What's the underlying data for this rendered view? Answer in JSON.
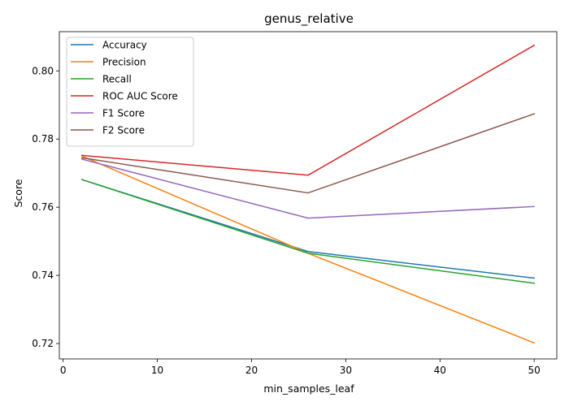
{
  "chart_data": {
    "type": "line",
    "title": "genus_relative",
    "xlabel": "min_samples_leaf",
    "ylabel": "Score",
    "x": [
      2,
      26,
      50
    ],
    "xlim": [
      -0.4,
      52.4
    ],
    "ylim": [
      0.7155,
      0.8115
    ],
    "xticks": [
      0,
      10,
      20,
      30,
      40,
      50
    ],
    "yticks": [
      0.72,
      0.74,
      0.76,
      0.78,
      0.8
    ],
    "ytick_labels": [
      "0.72",
      "0.74",
      "0.76",
      "0.78",
      "0.80"
    ],
    "grid": false,
    "legend_position": "upper-left",
    "series": [
      {
        "name": "Accuracy",
        "color": "#1f77b4",
        "values": [
          0.7681,
          0.747,
          0.7392
        ]
      },
      {
        "name": "Precision",
        "color": "#ff7f0e",
        "values": [
          0.775,
          0.7465,
          0.7202
        ]
      },
      {
        "name": "Recall",
        "color": "#2ca02c",
        "values": [
          0.7681,
          0.7465,
          0.7377
        ]
      },
      {
        "name": "ROC AUC Score",
        "color": "#d62728",
        "values": [
          0.7752,
          0.7694,
          0.8075
        ]
      },
      {
        "name": "F1 Score",
        "color": "#9467bd",
        "values": [
          0.7741,
          0.7568,
          0.7602
        ]
      },
      {
        "name": "F2 Score",
        "color": "#8c564b",
        "values": [
          0.7745,
          0.7642,
          0.7874
        ]
      }
    ]
  }
}
